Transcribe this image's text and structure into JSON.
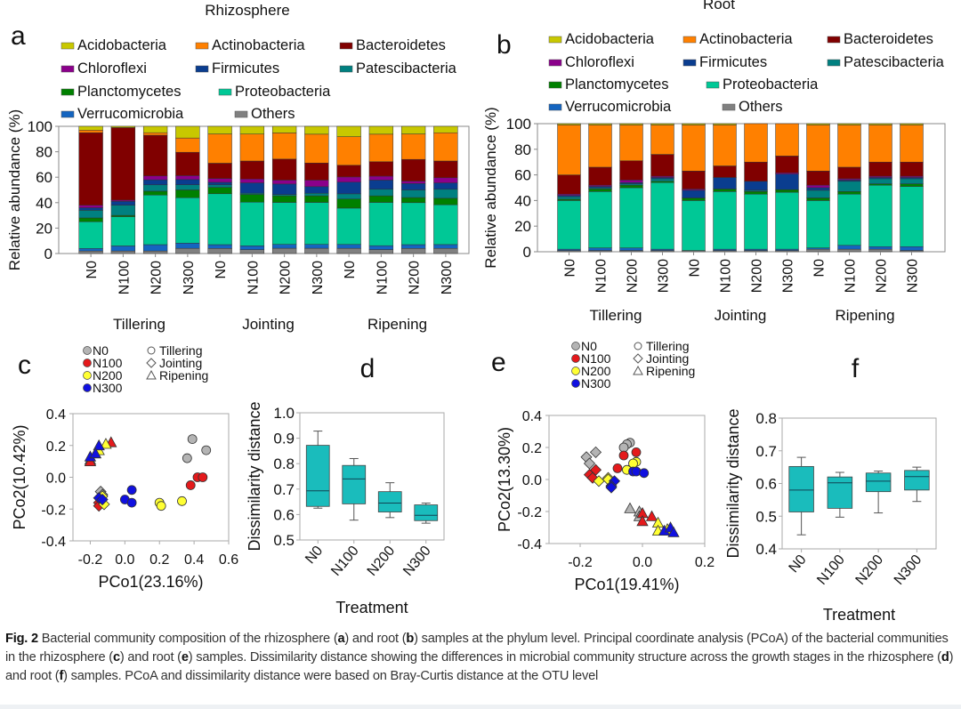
{
  "figure": {
    "caption": {
      "label": "Fig. 2",
      "parts": [
        {
          "t": " Bacterial community composition of the rhizosphere ("
        },
        {
          "b": "a"
        },
        {
          "t": ") and root ("
        },
        {
          "b": "b"
        },
        {
          "t": ") samples at the phylum level. Principal coordinate analysis (PCoA) of the bacterial communities in the rhizosphere ("
        },
        {
          "b": "c"
        },
        {
          "t": ") and root ("
        },
        {
          "b": "e"
        },
        {
          "t": ") samples. Dissimilarity distance showing the differences in microbial community structure across the growth stages in the rhizosphere ("
        },
        {
          "b": "d"
        },
        {
          "t": ") and root ("
        },
        {
          "b": "f"
        },
        {
          "t": ") samples. PCoA and dissimilarity distance were based on Bray-Curtis distance at the OTU level"
        }
      ]
    }
  },
  "chart_data": [
    {
      "panel": "a",
      "type": "bar",
      "stacked": true,
      "title": "Rhizosphere",
      "ylabel": "Relative abundance (%)",
      "ylim": [
        0,
        100
      ],
      "yticks": [
        0,
        20,
        40,
        60,
        80,
        100
      ],
      "categories": [
        "N0",
        "N100",
        "N200",
        "N300",
        "N0",
        "N100",
        "N200",
        "N300",
        "N0",
        "N100",
        "N200",
        "N300"
      ],
      "groups": [
        "Tillering",
        "Jointing",
        "Ripening"
      ],
      "legend": [
        {
          "name": "Acidobacteria",
          "color": "#c8c800"
        },
        {
          "name": "Actinobacteria",
          "color": "#ff8000"
        },
        {
          "name": "Bacteroidetes",
          "color": "#800000"
        },
        {
          "name": "Chloroflexi",
          "color": "#8b008b"
        },
        {
          "name": "Firmicutes",
          "color": "#0a3d8f"
        },
        {
          "name": "Patescibacteria",
          "color": "#008080"
        },
        {
          "name": "Planctomycetes",
          "color": "#008000"
        },
        {
          "name": "Proteobacteria",
          "color": "#00c896"
        },
        {
          "name": "Verrucomicrobia",
          "color": "#1565c0"
        },
        {
          "name": "Others",
          "color": "#808080"
        }
      ],
      "stack_order_bottom_to_top": [
        "Others",
        "Verrucomicrobia",
        "Proteobacteria",
        "Planctomycetes",
        "Patescibacteria",
        "Firmicutes",
        "Chloroflexi",
        "Bacteroidetes",
        "Actinobacteria",
        "Acidobacteria"
      ],
      "series": [
        {
          "name": "Others",
          "values": [
            2,
            2,
            2,
            4,
            4,
            3,
            4,
            4,
            4,
            3,
            4,
            4
          ]
        },
        {
          "name": "Verrucomicrobia",
          "values": [
            2,
            4,
            5,
            4,
            3,
            3,
            3,
            3,
            3,
            3,
            3,
            3
          ]
        },
        {
          "name": "Proteobacteria",
          "values": [
            21,
            23,
            39,
            35,
            40,
            34,
            32,
            32,
            28,
            33,
            33,
            31
          ]
        },
        {
          "name": "Planctomycetes",
          "values": [
            3,
            1,
            3,
            6,
            5,
            6,
            5,
            5,
            7,
            5,
            4,
            5
          ]
        },
        {
          "name": "Patescibacteria",
          "values": [
            6,
            8,
            5,
            4,
            2,
            1,
            1,
            2,
            4,
            5,
            6,
            7
          ]
        },
        {
          "name": "Firmicutes",
          "values": [
            2,
            3,
            4,
            4,
            2,
            8,
            8,
            5,
            9,
            7,
            5,
            5
          ]
        },
        {
          "name": "Chloroflexi",
          "values": [
            2,
            1,
            3,
            3,
            3,
            3,
            3,
            5,
            4,
            3,
            2,
            4
          ]
        },
        {
          "name": "Bacteroidetes",
          "values": [
            57,
            57,
            32,
            18,
            12,
            14,
            16,
            13,
            9,
            11,
            17,
            13
          ]
        },
        {
          "name": "Actinobacteria",
          "values": [
            2,
            0,
            2,
            11,
            23,
            21,
            20,
            22,
            22,
            21,
            20,
            22
          ]
        },
        {
          "name": "Acidobacteria",
          "values": [
            3,
            1,
            5,
            9,
            6,
            6,
            5,
            6,
            8,
            6,
            6,
            5
          ]
        }
      ]
    },
    {
      "panel": "b",
      "type": "bar",
      "stacked": true,
      "title": "Root",
      "ylabel": "Relative abundance (%)",
      "ylim": [
        0,
        100
      ],
      "yticks": [
        0,
        20,
        40,
        60,
        80,
        100
      ],
      "categories": [
        "N0",
        "N100",
        "N200",
        "N300",
        "N0",
        "N100",
        "N200",
        "N300",
        "N0",
        "N100",
        "N200",
        "N300"
      ],
      "groups": [
        "Tillering",
        "Jointing",
        "Ripening"
      ],
      "stack_order_bottom_to_top": [
        "Others",
        "Verrucomicrobia",
        "Proteobacteria",
        "Planctomycetes",
        "Patescibacteria",
        "Firmicutes",
        "Chloroflexi",
        "Bacteroidetes",
        "Actinobacteria",
        "Acidobacteria"
      ],
      "series": [
        {
          "name": "Others",
          "values": [
            1,
            1,
            1,
            1,
            1,
            1,
            1,
            1,
            2,
            2,
            2,
            1
          ]
        },
        {
          "name": "Verrucomicrobia",
          "values": [
            1,
            2,
            2,
            1,
            0,
            1,
            1,
            1,
            1,
            3,
            2,
            3
          ]
        },
        {
          "name": "Proteobacteria",
          "values": [
            38,
            44,
            47,
            52,
            39,
            45,
            43,
            44,
            37,
            40,
            48,
            47
          ]
        },
        {
          "name": "Planctomycetes",
          "values": [
            1,
            2,
            2,
            1,
            2,
            2,
            2,
            2,
            2,
            2,
            1,
            2
          ]
        },
        {
          "name": "Patescibacteria",
          "values": [
            2,
            1,
            1,
            2,
            0,
            0,
            1,
            0,
            6,
            8,
            4,
            4
          ]
        },
        {
          "name": "Firmicutes",
          "values": [
            1,
            1,
            1,
            1,
            6,
            9,
            7,
            12,
            2,
            1,
            1,
            1
          ]
        },
        {
          "name": "Chloroflexi",
          "values": [
            1,
            1,
            2,
            1,
            1,
            0,
            0,
            1,
            2,
            1,
            1,
            1
          ]
        },
        {
          "name": "Bacteroidetes",
          "values": [
            15,
            14,
            15,
            17,
            14,
            9,
            15,
            13,
            11,
            9,
            11,
            11
          ]
        },
        {
          "name": "Actinobacteria",
          "values": [
            39,
            33,
            28,
            23,
            36,
            32,
            30,
            25,
            36,
            33,
            29,
            29
          ]
        },
        {
          "name": "Acidobacteria",
          "values": [
            1,
            1,
            1,
            1,
            1,
            1,
            0,
            0,
            1,
            1,
            1,
            1
          ]
        }
      ]
    },
    {
      "panel": "c",
      "type": "scatter",
      "xlabel": "PCo1(23.16%)",
      "ylabel": "PCo2(10.42%)",
      "xlim": [
        -0.3,
        0.6
      ],
      "ylim": [
        -0.4,
        0.4
      ],
      "xticks": [
        -0.2,
        0.0,
        0.2,
        0.4,
        0.6
      ],
      "yticks": [
        -0.4,
        -0.2,
        0.0,
        0.2,
        0.4
      ],
      "color_legend": [
        {
          "name": "N0",
          "color": "#b4b4b4"
        },
        {
          "name": "N100",
          "color": "#e41a1c"
        },
        {
          "name": "N200",
          "color": "#ffff33"
        },
        {
          "name": "N300",
          "color": "#1010e0"
        }
      ],
      "shape_legend": [
        {
          "name": "Tillering",
          "shape": "circle"
        },
        {
          "name": "Jointing",
          "shape": "diamond"
        },
        {
          "name": "Ripening",
          "shape": "triangle"
        }
      ],
      "points": [
        {
          "x": 0.39,
          "y": 0.24,
          "c": "N0",
          "s": "circle"
        },
        {
          "x": 0.47,
          "y": 0.17,
          "c": "N0",
          "s": "circle"
        },
        {
          "x": 0.36,
          "y": 0.12,
          "c": "N0",
          "s": "circle"
        },
        {
          "x": 0.42,
          "y": 0.0,
          "c": "N100",
          "s": "circle"
        },
        {
          "x": 0.45,
          "y": 0.0,
          "c": "N100",
          "s": "circle"
        },
        {
          "x": 0.38,
          "y": -0.05,
          "c": "N100",
          "s": "circle"
        },
        {
          "x": 0.33,
          "y": -0.15,
          "c": "N200",
          "s": "circle"
        },
        {
          "x": 0.2,
          "y": -0.16,
          "c": "N200",
          "s": "circle"
        },
        {
          "x": 0.21,
          "y": -0.18,
          "c": "N200",
          "s": "circle"
        },
        {
          "x": 0.04,
          "y": -0.08,
          "c": "N300",
          "s": "circle"
        },
        {
          "x": 0.0,
          "y": -0.14,
          "c": "N300",
          "s": "circle"
        },
        {
          "x": 0.04,
          "y": -0.16,
          "c": "N300",
          "s": "circle"
        },
        {
          "x": -0.14,
          "y": -0.09,
          "c": "N0",
          "s": "diamond"
        },
        {
          "x": -0.13,
          "y": -0.11,
          "c": "N0",
          "s": "diamond"
        },
        {
          "x": -0.15,
          "y": -0.16,
          "c": "N100",
          "s": "diamond"
        },
        {
          "x": -0.15,
          "y": -0.18,
          "c": "N100",
          "s": "diamond"
        },
        {
          "x": -0.13,
          "y": -0.12,
          "c": "N200",
          "s": "diamond"
        },
        {
          "x": -0.12,
          "y": -0.17,
          "c": "N200",
          "s": "diamond"
        },
        {
          "x": -0.15,
          "y": -0.13,
          "c": "N300",
          "s": "diamond"
        },
        {
          "x": -0.13,
          "y": -0.14,
          "c": "N300",
          "s": "diamond"
        },
        {
          "x": -0.2,
          "y": 0.11,
          "c": "N0",
          "s": "triangle"
        },
        {
          "x": -0.17,
          "y": 0.15,
          "c": "N0",
          "s": "triangle"
        },
        {
          "x": -0.2,
          "y": 0.1,
          "c": "N100",
          "s": "triangle"
        },
        {
          "x": -0.08,
          "y": 0.22,
          "c": "N100",
          "s": "triangle"
        },
        {
          "x": -0.15,
          "y": 0.17,
          "c": "N200",
          "s": "triangle"
        },
        {
          "x": -0.11,
          "y": 0.21,
          "c": "N200",
          "s": "triangle"
        },
        {
          "x": -0.2,
          "y": 0.13,
          "c": "N300",
          "s": "triangle"
        },
        {
          "x": -0.15,
          "y": 0.2,
          "c": "N300",
          "s": "triangle"
        },
        {
          "x": -0.17,
          "y": 0.15,
          "c": "N300",
          "s": "triangle"
        }
      ]
    },
    {
      "panel": "d",
      "type": "box",
      "xlabel": "Treatment",
      "ylabel": "Dissimilarity distance",
      "ylim": [
        0.5,
        1.0
      ],
      "yticks": [
        0.5,
        0.6,
        0.7,
        0.8,
        0.9,
        1.0
      ],
      "categories": [
        "N0",
        "N100",
        "N200",
        "N300"
      ],
      "boxes": [
        {
          "min": 0.625,
          "q1": 0.632,
          "median": 0.693,
          "q3": 0.872,
          "max": 0.928
        },
        {
          "min": 0.578,
          "q1": 0.642,
          "median": 0.74,
          "q3": 0.793,
          "max": 0.82
        },
        {
          "min": 0.588,
          "q1": 0.61,
          "median": 0.645,
          "q3": 0.69,
          "max": 0.725
        },
        {
          "min": 0.566,
          "q1": 0.576,
          "median": 0.597,
          "q3": 0.638,
          "max": 0.645
        }
      ],
      "color": "#1abcbc"
    },
    {
      "panel": "e",
      "type": "scatter",
      "xlabel": "PCo1(19.41%)",
      "ylabel": "PCo2(13.30%)",
      "xlim": [
        -0.3,
        0.2
      ],
      "ylim": [
        -0.4,
        0.4
      ],
      "xticks": [
        -0.2,
        0.0,
        0.2
      ],
      "yticks": [
        -0.4,
        -0.2,
        0.0,
        0.2,
        0.4
      ],
      "points": [
        {
          "x": -0.04,
          "y": 0.23,
          "c": "N0",
          "s": "circle"
        },
        {
          "x": -0.05,
          "y": 0.22,
          "c": "N0",
          "s": "circle"
        },
        {
          "x": -0.06,
          "y": 0.2,
          "c": "N0",
          "s": "circle"
        },
        {
          "x": -0.02,
          "y": 0.17,
          "c": "N100",
          "s": "circle"
        },
        {
          "x": -0.06,
          "y": 0.15,
          "c": "N100",
          "s": "circle"
        },
        {
          "x": -0.08,
          "y": 0.07,
          "c": "N100",
          "s": "circle"
        },
        {
          "x": -0.02,
          "y": 0.11,
          "c": "N200",
          "s": "circle"
        },
        {
          "x": -0.03,
          "y": 0.1,
          "c": "N200",
          "s": "circle"
        },
        {
          "x": -0.05,
          "y": 0.06,
          "c": "N200",
          "s": "circle"
        },
        {
          "x": -0.03,
          "y": 0.05,
          "c": "N300",
          "s": "circle"
        },
        {
          "x": -0.02,
          "y": 0.05,
          "c": "N300",
          "s": "circle"
        },
        {
          "x": 0.005,
          "y": 0.04,
          "c": "N300",
          "s": "circle"
        },
        {
          "x": -0.18,
          "y": 0.14,
          "c": "N0",
          "s": "diamond"
        },
        {
          "x": -0.15,
          "y": 0.17,
          "c": "N0",
          "s": "diamond"
        },
        {
          "x": -0.17,
          "y": 0.1,
          "c": "N0",
          "s": "diamond"
        },
        {
          "x": -0.17,
          "y": 0.03,
          "c": "N100",
          "s": "diamond"
        },
        {
          "x": -0.16,
          "y": 0.01,
          "c": "N100",
          "s": "diamond"
        },
        {
          "x": -0.15,
          "y": 0.06,
          "c": "N100",
          "s": "diamond"
        },
        {
          "x": -0.11,
          "y": 0.01,
          "c": "N200",
          "s": "diamond"
        },
        {
          "x": -0.14,
          "y": -0.01,
          "c": "N200",
          "s": "diamond"
        },
        {
          "x": -0.11,
          "y": 0.0,
          "c": "N200",
          "s": "diamond"
        },
        {
          "x": -0.09,
          "y": -0.01,
          "c": "N300",
          "s": "diamond"
        },
        {
          "x": -0.1,
          "y": -0.04,
          "c": "N300",
          "s": "diamond"
        },
        {
          "x": -0.1,
          "y": -0.05,
          "c": "N300",
          "s": "diamond"
        },
        {
          "x": -0.04,
          "y": -0.18,
          "c": "N0",
          "s": "triangle"
        },
        {
          "x": -0.01,
          "y": -0.2,
          "c": "N0",
          "s": "triangle"
        },
        {
          "x": -0.01,
          "y": -0.23,
          "c": "N0",
          "s": "triangle"
        },
        {
          "x": 0.0,
          "y": -0.21,
          "c": "N100",
          "s": "triangle"
        },
        {
          "x": 0.03,
          "y": -0.23,
          "c": "N100",
          "s": "triangle"
        },
        {
          "x": 0.0,
          "y": -0.26,
          "c": "N100",
          "s": "triangle"
        },
        {
          "x": 0.05,
          "y": -0.27,
          "c": "N200",
          "s": "triangle"
        },
        {
          "x": 0.05,
          "y": -0.32,
          "c": "N200",
          "s": "triangle"
        },
        {
          "x": 0.08,
          "y": -0.31,
          "c": "N200",
          "s": "triangle"
        },
        {
          "x": 0.07,
          "y": -0.32,
          "c": "N300",
          "s": "triangle"
        },
        {
          "x": 0.09,
          "y": -0.3,
          "c": "N300",
          "s": "triangle"
        },
        {
          "x": 0.1,
          "y": -0.33,
          "c": "N300",
          "s": "triangle"
        }
      ]
    },
    {
      "panel": "f",
      "type": "box",
      "xlabel": "Treatment",
      "ylabel": "Dissimilarity distance",
      "ylim": [
        0.4,
        0.8
      ],
      "yticks": [
        0.4,
        0.5,
        0.6,
        0.7,
        0.8
      ],
      "categories": [
        "N0",
        "N100",
        "N200",
        "N300"
      ],
      "boxes": [
        {
          "min": 0.443,
          "q1": 0.513,
          "median": 0.58,
          "q3": 0.652,
          "max": 0.68
        },
        {
          "min": 0.497,
          "q1": 0.524,
          "median": 0.602,
          "q3": 0.62,
          "max": 0.634
        },
        {
          "min": 0.51,
          "q1": 0.575,
          "median": 0.607,
          "q3": 0.632,
          "max": 0.638
        },
        {
          "min": 0.545,
          "q1": 0.58,
          "median": 0.621,
          "q3": 0.64,
          "max": 0.65
        }
      ],
      "color": "#1abcbc"
    }
  ],
  "panel_labels": [
    "a",
    "b",
    "c",
    "d",
    "e",
    "f"
  ]
}
